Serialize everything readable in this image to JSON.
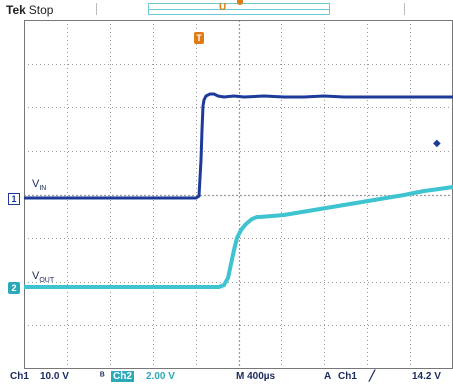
{
  "header": {
    "brand": "Tek",
    "state": "Stop",
    "record_marker": "U"
  },
  "trigger_position_marker": "T",
  "channel_markers": {
    "ch1": "1",
    "ch2": "2"
  },
  "signal_labels": {
    "vin_main": "V",
    "vin_sub": "IN",
    "vout_main": "V",
    "vout_sub": "OUT"
  },
  "status_bar": {
    "ch1_label": "Ch1",
    "ch1_scale": "10.0 V",
    "ch2_label": "Ch2",
    "ch2_scale": "2.00 V",
    "timebase": "M 400µs",
    "trigger_mode": "A",
    "trigger_source": "Ch1",
    "trigger_slope": "╱",
    "trigger_level": "14.2 V"
  },
  "colors": {
    "ch1": "#1d3a9a",
    "ch2": "#3ec3d0",
    "trigger": "#e07a12",
    "grid": "#9a9a9a"
  }
}
